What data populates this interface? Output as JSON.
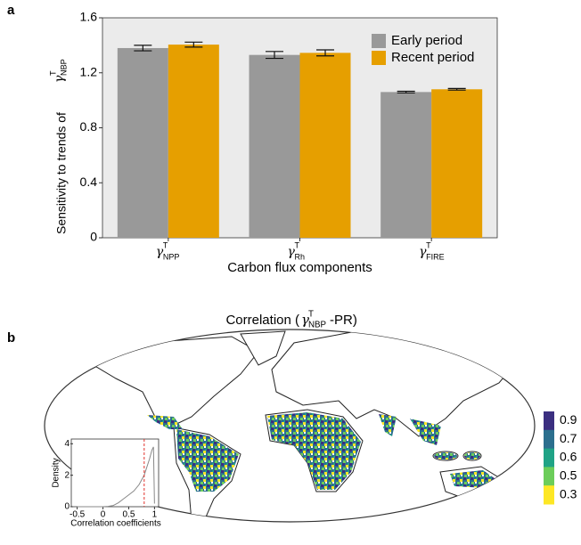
{
  "chart_data": [
    {
      "type": "bar",
      "panel_label": "a",
      "ylabel": "Sensitivity to trends of",
      "ylabel_symbol": "γ",
      "ylabel_sup": "T",
      "ylabel_sub": "NBP",
      "xlabel": "Carbon flux components",
      "category_symbol": "γ",
      "category_sup": "T",
      "categories": [
        "NPP",
        "Rh",
        "FIRE"
      ],
      "series": [
        {
          "name": "Early period",
          "color": "#999999",
          "values": [
            1.38,
            1.33,
            1.06
          ],
          "errors": [
            0.02,
            0.025,
            0.006
          ]
        },
        {
          "name": "Recent period",
          "color": "#e69f00",
          "values": [
            1.405,
            1.345,
            1.08
          ],
          "errors": [
            0.018,
            0.022,
            0.006
          ]
        }
      ],
      "ylim": [
        0,
        1.6
      ],
      "yticks": [
        0,
        0.4,
        0.8,
        1.2,
        1.6
      ],
      "legend": "top-right"
    },
    {
      "type": "map",
      "panel_label": "b",
      "title": "Correlation (",
      "title_symbol": "γ",
      "title_sup": "T",
      "title_sub": "NBP",
      "title_end": "-PR)",
      "colorbar": {
        "ticks": [
          0.9,
          0.7,
          0.6,
          0.5,
          0.3
        ],
        "colors": [
          "#3b2f80",
          "#2c6f8e",
          "#20a386",
          "#6ccd5a",
          "#fde725"
        ]
      }
    },
    {
      "type": "line",
      "xlabel": "Correlation coefficients",
      "ylabel": "Density",
      "x": [
        -0.5,
        -0.3,
        -0.1,
        0,
        0.1,
        0.2,
        0.3,
        0.4,
        0.5,
        0.6,
        0.7,
        0.8,
        0.85,
        0.9,
        0.95,
        0.98,
        1.0
      ],
      "series": [
        {
          "color": "#888888",
          "values": [
            0,
            0,
            0,
            0,
            0.02,
            0.08,
            0.25,
            0.5,
            0.75,
            1.0,
            1.4,
            2.0,
            2.5,
            3.0,
            3.6,
            3.8,
            0.2
          ]
        }
      ],
      "vline": {
        "value": 0.8,
        "color": "#e0312b"
      },
      "xlim": [
        -0.58,
        1.08
      ],
      "xticks": [
        -0.5,
        0,
        0.5,
        1
      ],
      "ylim": [
        0,
        4.3
      ],
      "yticks": [
        0,
        2,
        4
      ]
    }
  ]
}
